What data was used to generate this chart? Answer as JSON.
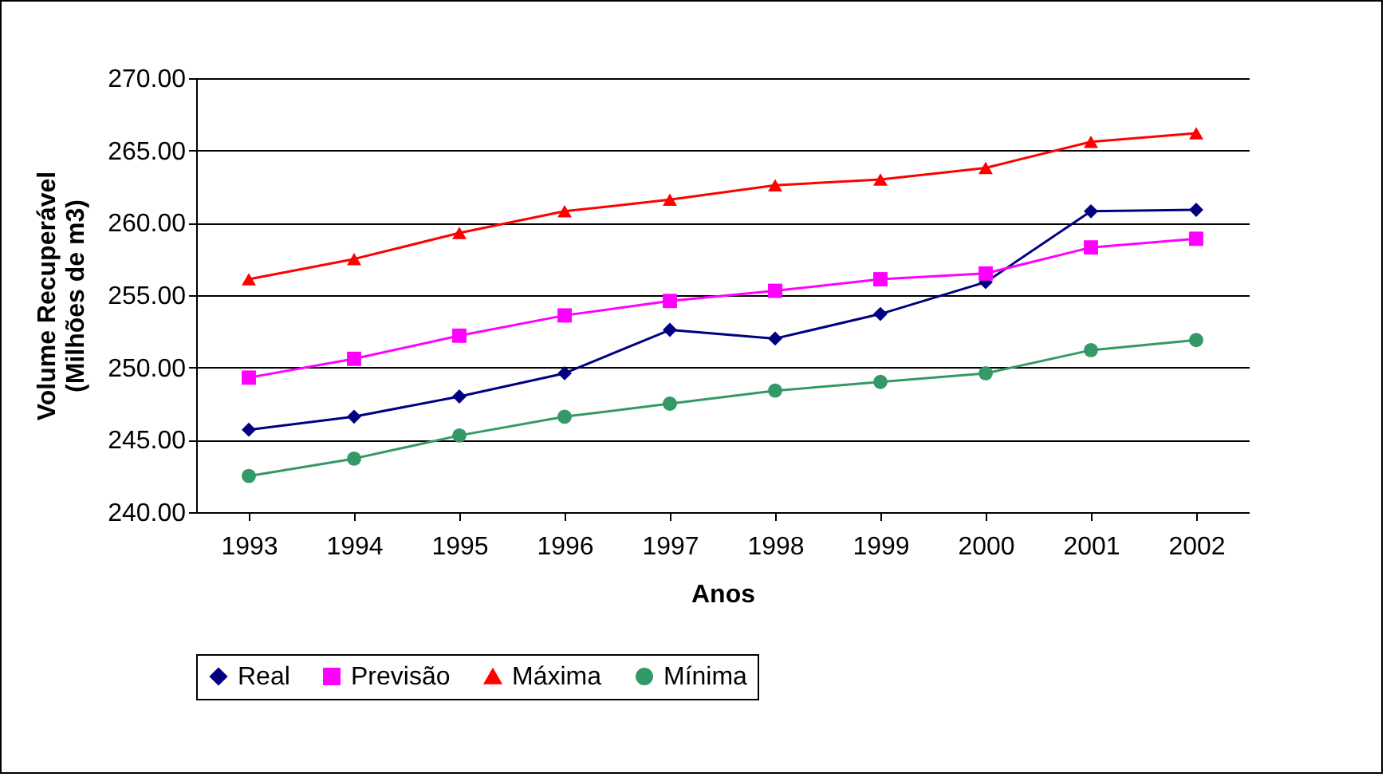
{
  "chart_data": {
    "type": "line",
    "xlabel": "Anos",
    "ylabel": "Volume Recuperável\n(Milhões de m3)",
    "categories": [
      "1993",
      "1994",
      "1995",
      "1996",
      "1997",
      "1998",
      "1999",
      "2000",
      "2001",
      "2002"
    ],
    "series": [
      {
        "name": "Real",
        "color": "#000080",
        "marker": "diamond",
        "values": [
          245.7,
          246.6,
          248.0,
          249.6,
          252.6,
          252.0,
          253.7,
          255.9,
          260.8,
          260.9
        ]
      },
      {
        "name": "Previsão",
        "color": "#ff00ff",
        "marker": "square",
        "values": [
          249.3,
          250.6,
          252.2,
          253.6,
          254.6,
          255.3,
          256.1,
          256.5,
          258.3,
          258.9
        ]
      },
      {
        "name": "Máxima",
        "color": "#ff0000",
        "marker": "triangle",
        "values": [
          256.1,
          257.5,
          259.3,
          260.8,
          261.6,
          262.6,
          263.0,
          263.8,
          265.6,
          266.2
        ]
      },
      {
        "name": "Mínima",
        "color": "#339966",
        "marker": "circle",
        "values": [
          242.5,
          243.7,
          245.3,
          246.6,
          247.5,
          248.4,
          249.0,
          249.6,
          251.2,
          251.9
        ]
      }
    ],
    "ylim": [
      240,
      270
    ],
    "yticks": [
      {
        "value": 240,
        "label": "240.00"
      },
      {
        "value": 245,
        "label": "245.00"
      },
      {
        "value": 250,
        "label": "250.00"
      },
      {
        "value": 255,
        "label": "255.00"
      },
      {
        "value": 260,
        "label": "260.00"
      },
      {
        "value": 265,
        "label": "265.00"
      },
      {
        "value": 270,
        "label": "270.00"
      }
    ],
    "grid": "y",
    "legend": "bottom",
    "line_style": "solid"
  }
}
